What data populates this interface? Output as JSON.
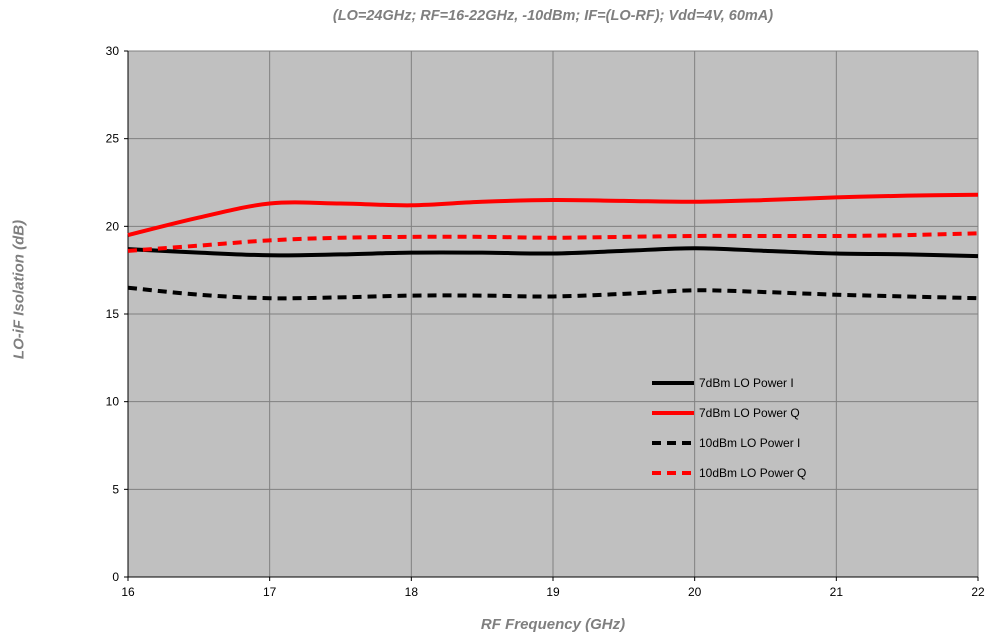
{
  "chart_data": {
    "type": "line",
    "title": "(LO=24GHz; RF=16-22GHz, -10dBm; IF=(LO-RF); Vdd=4V, 60mA)",
    "xlabel": "RF Frequency (GHz)",
    "ylabel": "LO-iF Isolation (dB)",
    "xlim": [
      16,
      22
    ],
    "ylim": [
      0,
      30
    ],
    "x_ticks": [
      16,
      17,
      18,
      19,
      20,
      21,
      22
    ],
    "y_ticks": [
      0,
      5,
      10,
      15,
      20,
      25,
      30
    ],
    "grid": true,
    "legend_position": "lower-right-inside",
    "colors": {
      "plot_background": "#c0c0c0",
      "grid": "#808080",
      "black": "#000000",
      "red": "#ff0000"
    },
    "x": [
      16,
      16.5,
      17,
      17.5,
      18,
      18.5,
      19,
      19.5,
      20,
      20.5,
      21,
      21.5,
      22
    ],
    "series": [
      {
        "name": "7dBm LO Power I",
        "color": "#000000",
        "dash": "solid",
        "values": [
          18.7,
          18.5,
          18.35,
          18.4,
          18.5,
          18.5,
          18.45,
          18.6,
          18.75,
          18.6,
          18.45,
          18.4,
          18.3
        ]
      },
      {
        "name": "7dBm LO Power Q",
        "color": "#ff0000",
        "dash": "solid",
        "values": [
          19.5,
          20.5,
          21.3,
          21.3,
          21.2,
          21.4,
          21.5,
          21.45,
          21.4,
          21.5,
          21.65,
          21.75,
          21.8
        ]
      },
      {
        "name": "10dBm LO Power I",
        "color": "#000000",
        "dash": "dashed",
        "values": [
          16.5,
          16.1,
          15.9,
          15.95,
          16.05,
          16.05,
          16.0,
          16.15,
          16.35,
          16.25,
          16.1,
          16.0,
          15.9
        ]
      },
      {
        "name": "10dBm LO Power Q",
        "color": "#ff0000",
        "dash": "dashed",
        "values": [
          18.6,
          18.9,
          19.2,
          19.35,
          19.4,
          19.4,
          19.35,
          19.4,
          19.45,
          19.45,
          19.45,
          19.5,
          19.6
        ]
      }
    ]
  }
}
